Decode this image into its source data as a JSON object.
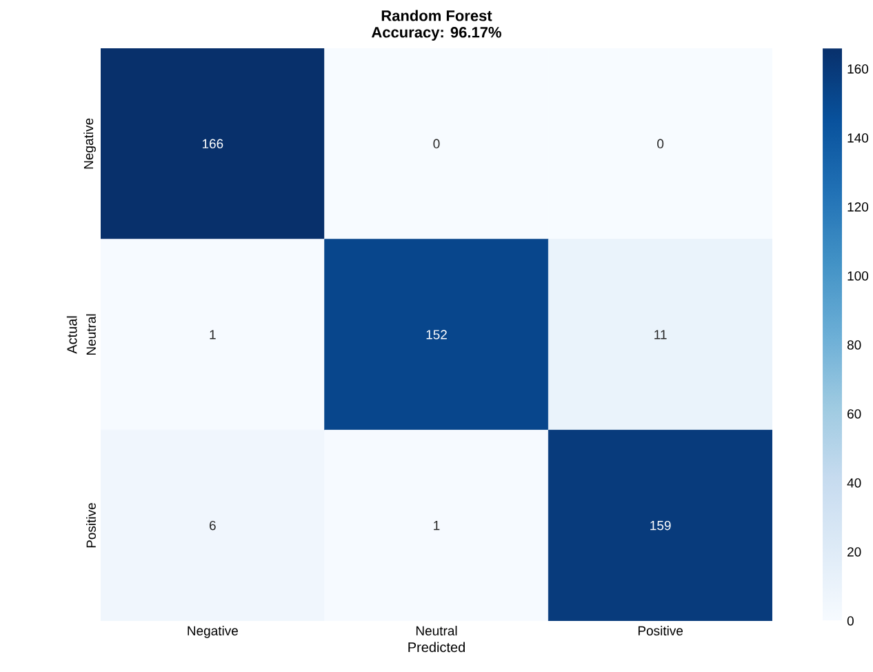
{
  "chart_data": {
    "type": "heatmap",
    "title": "Random Forest",
    "subtitle": "Accuracy: 96.17%",
    "xlabel": "Predicted",
    "ylabel": "Actual",
    "categories": [
      "Negative",
      "Neutral",
      "Positive"
    ],
    "y_categories": [
      "Negative",
      "Neutral",
      "Positive"
    ],
    "cells": [
      [
        166,
        0,
        0
      ],
      [
        1,
        152,
        11
      ],
      [
        6,
        1,
        159
      ]
    ],
    "clim": [
      0,
      166
    ],
    "cticks": [
      0,
      20,
      40,
      60,
      80,
      100,
      120,
      140,
      160
    ],
    "data_labels": true
  }
}
